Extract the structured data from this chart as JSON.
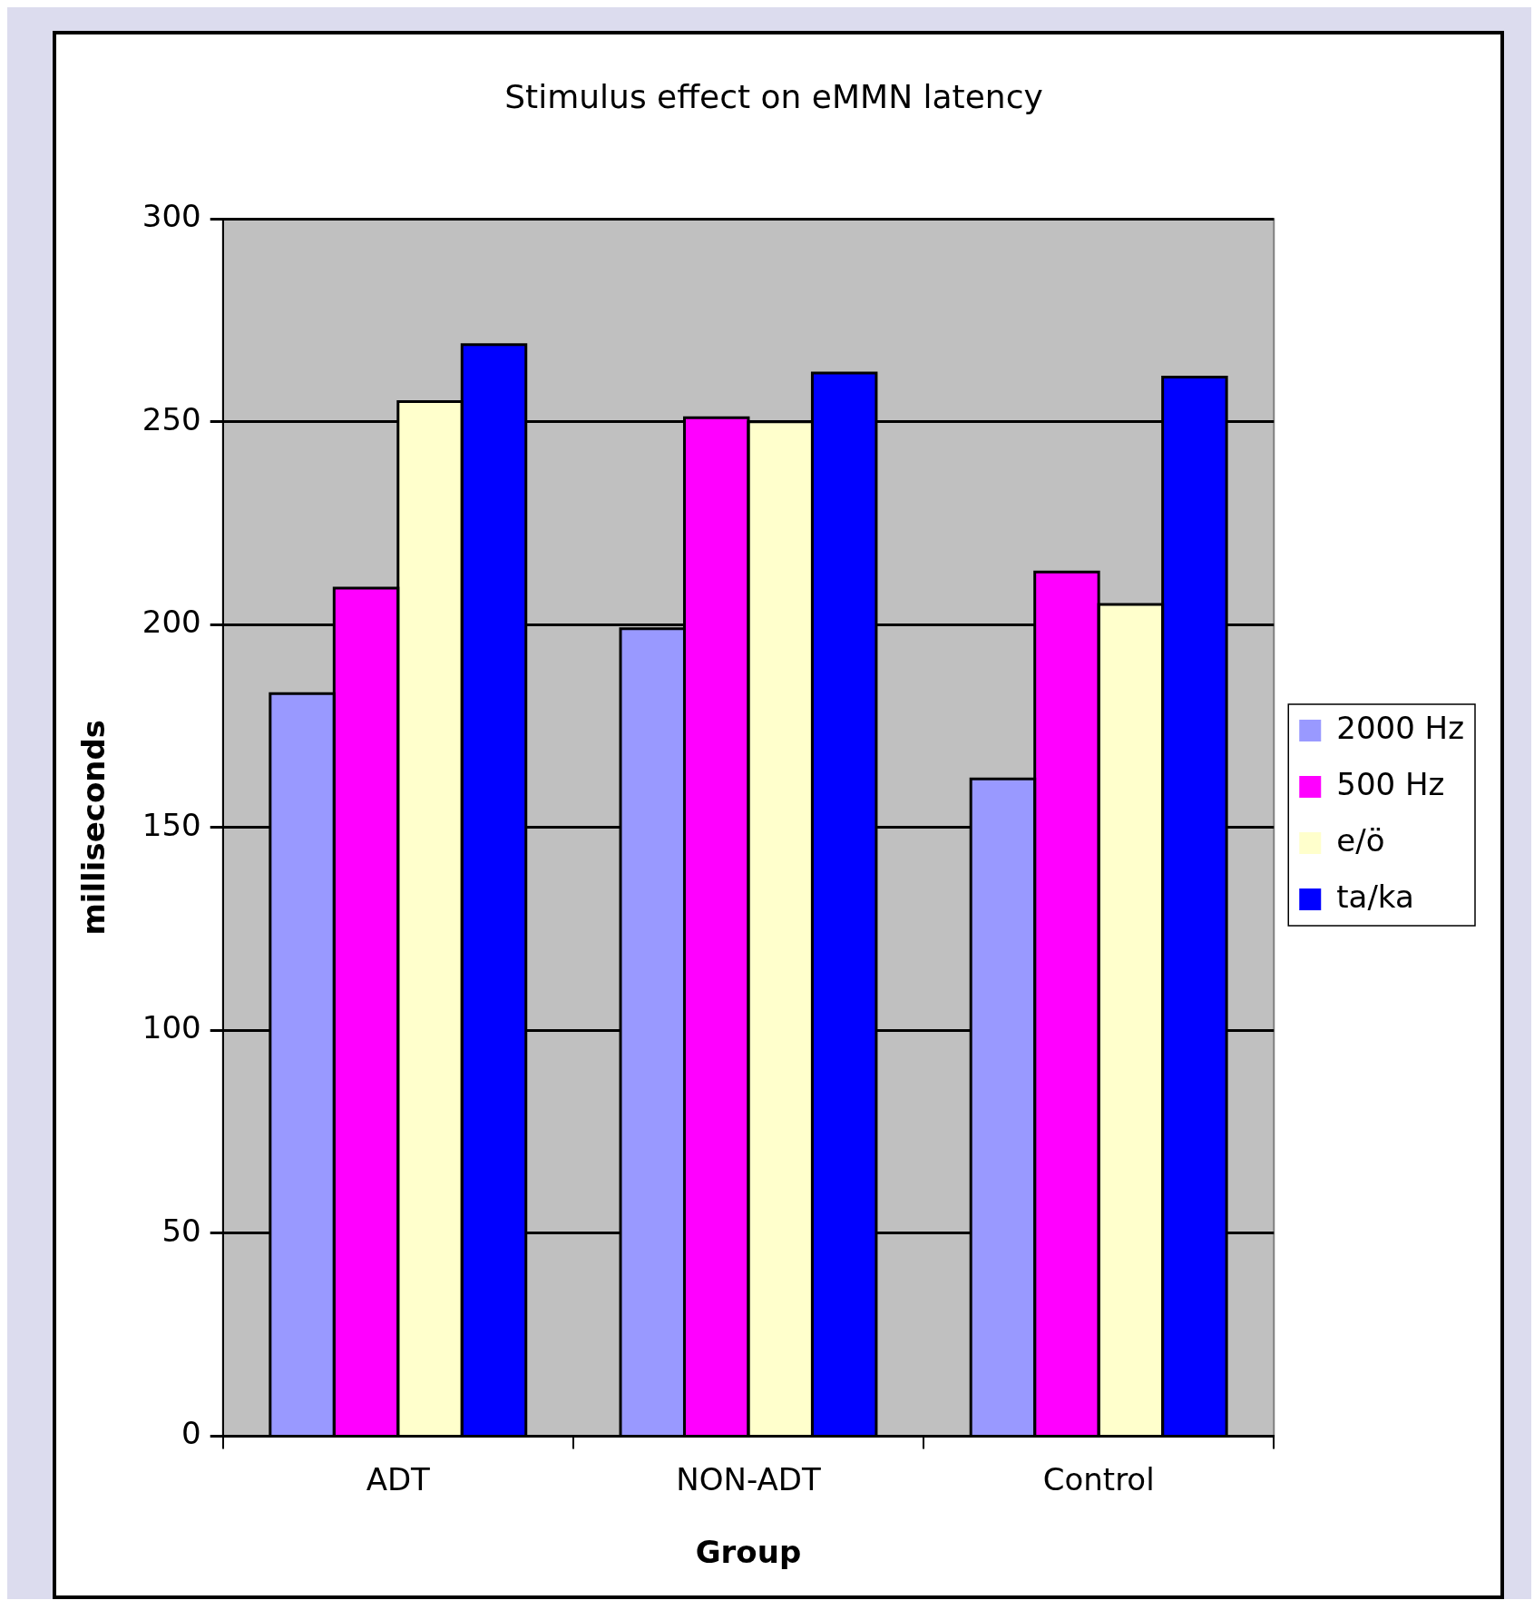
{
  "chart_data": {
    "type": "bar",
    "title": "Stimulus effect on eMMN latency",
    "xlabel": "Group",
    "ylabel": "milliseconds",
    "categories": [
      "ADT",
      "NON-ADT",
      "Control"
    ],
    "series": [
      {
        "name": "2000 Hz",
        "color": "#9999ff",
        "values": [
          183,
          199,
          162
        ]
      },
      {
        "name": "500 Hz",
        "color": "#ff00ff",
        "values": [
          209,
          251,
          213
        ]
      },
      {
        "name": "e/ö",
        "color": "#ffffcc",
        "values": [
          255,
          250,
          205
        ]
      },
      {
        "name": "ta/ka",
        "color": "#0000ff",
        "values": [
          269,
          262,
          261
        ]
      }
    ],
    "ylim": [
      0,
      300
    ],
    "yticks": [
      0,
      50,
      100,
      150,
      200,
      250,
      300
    ],
    "grid": "y",
    "legend": "right"
  }
}
